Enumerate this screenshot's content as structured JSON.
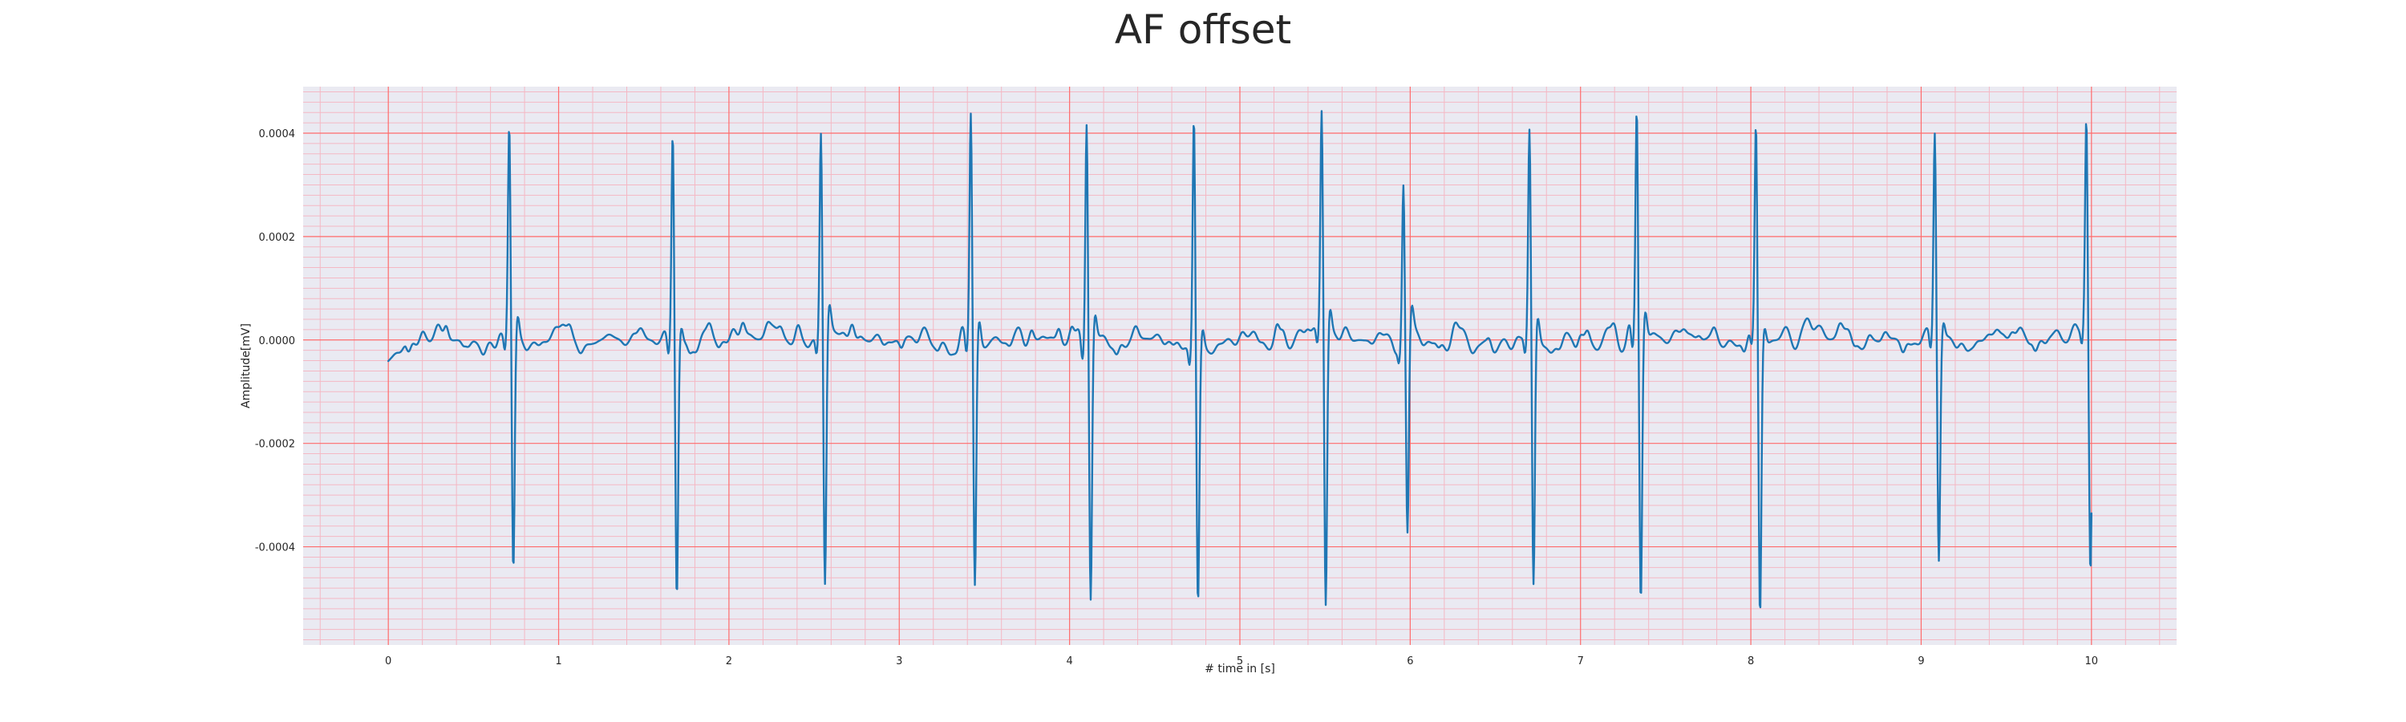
{
  "chart_data": {
    "type": "line",
    "title": "AF offset",
    "xlabel": "# time in [s]",
    "ylabel": "Amplitude[mV]",
    "xlim": [
      -0.5,
      10.5
    ],
    "ylim": [
      -0.00059,
      0.00049
    ],
    "x_ticks": [
      0,
      1,
      2,
      3,
      4,
      5,
      6,
      7,
      8,
      9,
      10
    ],
    "x_tick_labels": [
      "0",
      "1",
      "2",
      "3",
      "4",
      "5",
      "6",
      "7",
      "8",
      "9",
      "10"
    ],
    "y_ticks": [
      -0.0004,
      -0.0002,
      0.0,
      0.0002,
      0.0004
    ],
    "y_tick_labels": [
      "-0.0004",
      "-0.0002",
      "0.0000",
      "0.0002",
      "0.0004"
    ],
    "grid": true,
    "minor_grid": true,
    "legend": "none",
    "series": [
      {
        "x_start": 0,
        "x_end": 10,
        "baseline_start": -4e-05,
        "beats": [
          {
            "t": 0.71,
            "peak": 0.0004,
            "trough": -0.00046
          },
          {
            "t": 1.67,
            "peak": 0.000415,
            "trough": -0.00049
          },
          {
            "t": 2.54,
            "peak": 0.0004,
            "trough": -0.00049
          },
          {
            "t": 3.42,
            "peak": 0.00043,
            "trough": -0.00049
          },
          {
            "t": 4.1,
            "peak": 0.000445,
            "trough": -0.000505
          },
          {
            "t": 4.73,
            "peak": 0.000445,
            "trough": -0.000495
          },
          {
            "t": 5.48,
            "peak": 0.000425,
            "trough": -0.00054
          },
          {
            "t": 5.96,
            "peak": 0.00031,
            "trough": -0.000385
          },
          {
            "t": 6.7,
            "peak": 0.000398,
            "trough": -0.000505
          },
          {
            "t": 7.33,
            "peak": 0.000445,
            "trough": -0.000515
          },
          {
            "t": 8.03,
            "peak": 0.000413,
            "trough": -0.00053
          },
          {
            "t": 9.08,
            "peak": 0.000408,
            "trough": -0.00042
          },
          {
            "t": 9.97,
            "peak": 0.00041,
            "trough": -0.00044
          }
        ]
      }
    ]
  },
  "colors": {
    "plot_background": "#eaeaf2",
    "major_grid": "#ff6b6b",
    "minor_grid": "#f4b8c4",
    "line": "#1f77b4",
    "text": "#262626"
  }
}
